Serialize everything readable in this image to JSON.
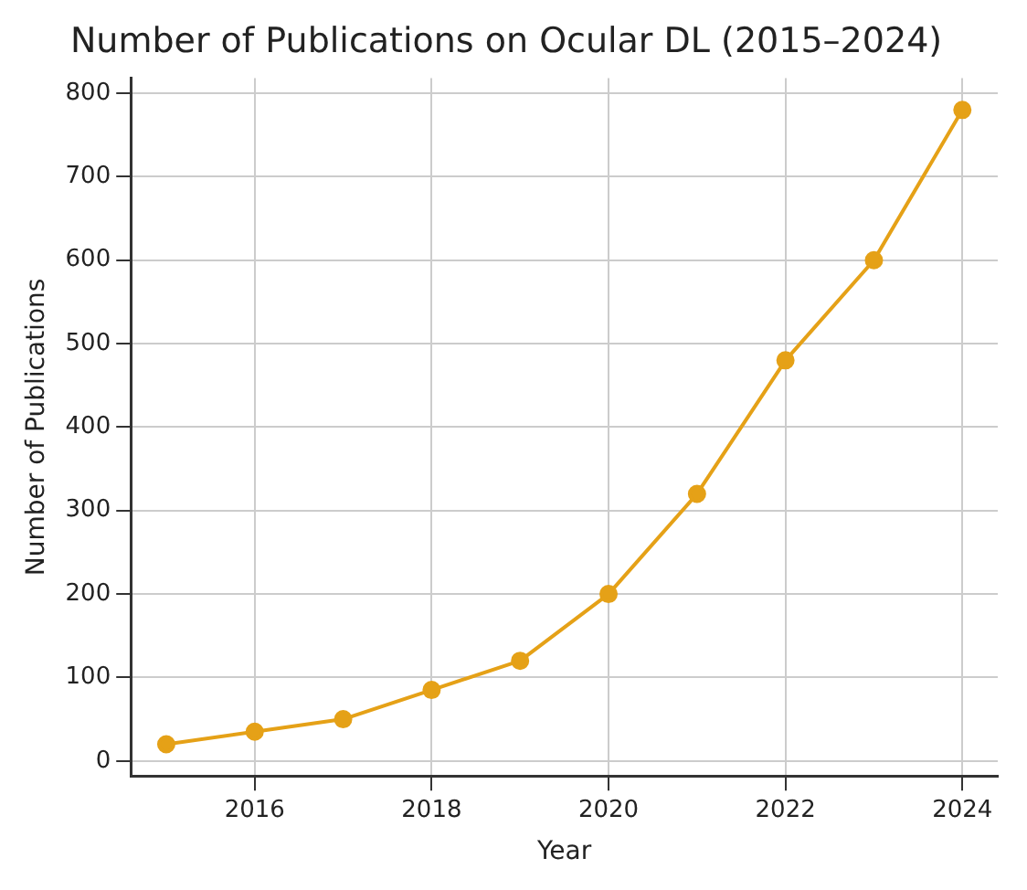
{
  "chart_data": {
    "type": "line",
    "title": "Number of Publications on Ocular DL (2015–2024)",
    "xlabel": "Year",
    "ylabel": "Number of Publications",
    "x": [
      2015,
      2016,
      2017,
      2018,
      2019,
      2020,
      2021,
      2022,
      2023,
      2024
    ],
    "series": [
      {
        "color": "#e5a117",
        "values": [
          20,
          35,
          50,
          85,
          120,
          200,
          320,
          480,
          600,
          780
        ]
      }
    ],
    "xlim": [
      2014.6,
      2024.4
    ],
    "xticks": [
      2016,
      2018,
      2020,
      2022,
      2024
    ],
    "ylim": [
      -18,
      818
    ],
    "yticks": [
      0,
      100,
      200,
      300,
      400,
      500,
      600,
      700,
      800
    ],
    "grid": true,
    "marker": "circle",
    "line_style": "solid",
    "legend": false
  }
}
